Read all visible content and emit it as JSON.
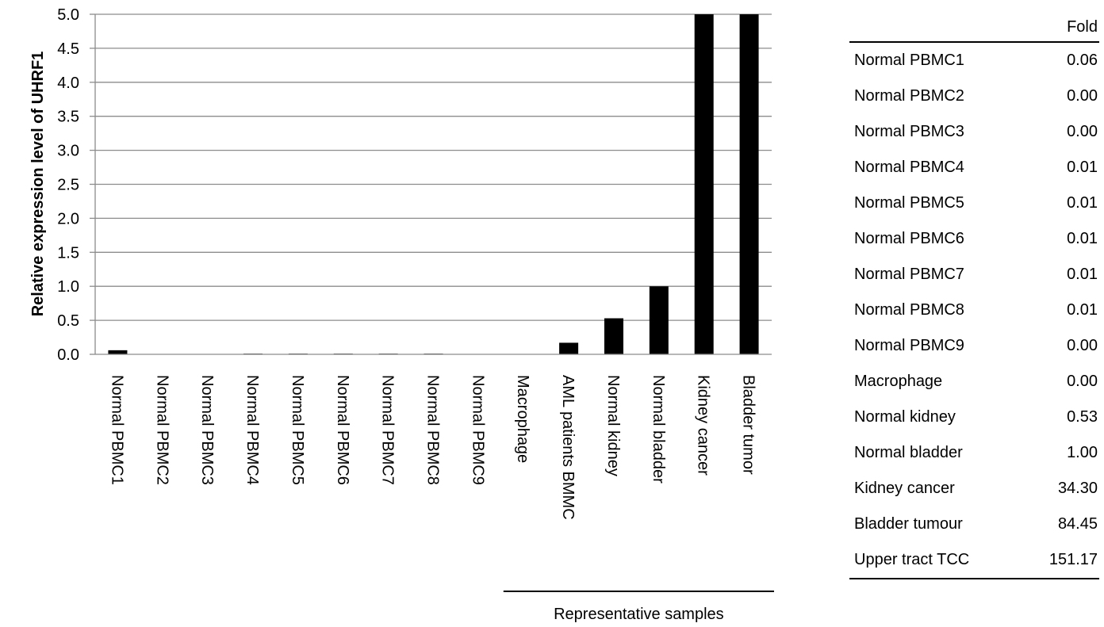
{
  "chart_data": {
    "type": "bar",
    "ylabel": "Relative expression level of UHRF1",
    "xlabel": "",
    "ylim": [
      0,
      5.0
    ],
    "yticks": [
      "0.0",
      "0.5",
      "1.0",
      "1.5",
      "2.0",
      "2.5",
      "3.0",
      "3.5",
      "4.0",
      "4.5",
      "5.0"
    ],
    "grid": true,
    "categories": [
      "Normal PBMC1",
      "Normal PBMC2",
      "Normal PBMC3",
      "Normal PBMC4",
      "Normal PBMC5",
      "Normal PBMC6",
      "Normal PBMC7",
      "Normal PBMC8",
      "Normal PBMC9",
      "Macrophage",
      "AML patients BMMC",
      "Normal kidney",
      "Normal bladder",
      "Kidney cancer",
      "Bladder tumor"
    ],
    "values": [
      0.06,
      0.0,
      0.0,
      0.01,
      0.01,
      0.01,
      0.01,
      0.01,
      0.0,
      0.0,
      0.17,
      0.53,
      1.0,
      5.0,
      5.0
    ],
    "bar_color": "#000000",
    "group_label": "Representative samples",
    "group_start_index": 9,
    "group_end_index": 14
  },
  "table": {
    "header_name": "",
    "header_value": "Fold",
    "rows": [
      {
        "name": "Normal PBMC1",
        "fold": "0.06"
      },
      {
        "name": "Normal PBMC2",
        "fold": "0.00"
      },
      {
        "name": "Normal PBMC3",
        "fold": "0.00"
      },
      {
        "name": "Normal PBMC4",
        "fold": "0.01"
      },
      {
        "name": "Normal PBMC5",
        "fold": "0.01"
      },
      {
        "name": "Normal PBMC6",
        "fold": "0.01"
      },
      {
        "name": "Normal PBMC7",
        "fold": "0.01"
      },
      {
        "name": "Normal PBMC8",
        "fold": "0.01"
      },
      {
        "name": "Normal PBMC9",
        "fold": "0.00"
      },
      {
        "name": "Macrophage",
        "fold": "0.00"
      },
      {
        "name": "Normal kidney",
        "fold": "0.53"
      },
      {
        "name": "Normal bladder",
        "fold": "1.00"
      },
      {
        "name": "Kidney cancer",
        "fold": "34.30"
      },
      {
        "name": "Bladder tumour",
        "fold": "84.45"
      },
      {
        "name": "Upper tract TCC",
        "fold": "151.17"
      }
    ]
  }
}
